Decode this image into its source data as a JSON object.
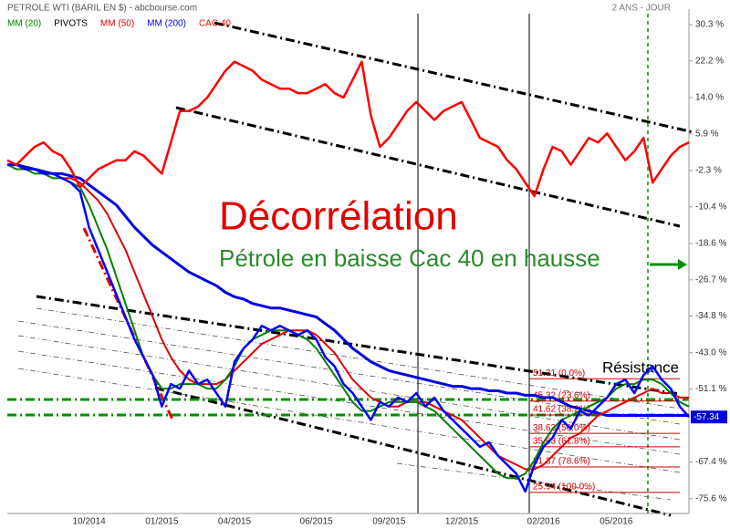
{
  "chart_data": {
    "type": "line",
    "title": "PETROLE WTI (BARIL EN $) - abcbourse.com",
    "subtitle": "2 ANS - JOUR",
    "categories": [
      null,
      null,
      null,
      null,
      null,
      null,
      null,
      null,
      null,
      "10/2014",
      null,
      null,
      null,
      null,
      null,
      null,
      null,
      "01/2015",
      null,
      null,
      null,
      null,
      null,
      null,
      null,
      "04/2015",
      null,
      null,
      null,
      null,
      null,
      null,
      null,
      null,
      "06/2015",
      null,
      null,
      null,
      null,
      null,
      null,
      null,
      "09/2015",
      null,
      null,
      null,
      null,
      null,
      null,
      null,
      "12/2015",
      null,
      null,
      null,
      null,
      null,
      null,
      null,
      null,
      "02/2016",
      null,
      null,
      null,
      null,
      null,
      null,
      null,
      "05/2016",
      null,
      null,
      null,
      null,
      null,
      null,
      null,
      null
    ],
    "series": [
      {
        "name": "MM (20)",
        "color": "#008000",
        "width": 2,
        "values": [
          -1,
          -2,
          -2,
          -3,
          -3,
          -4,
          -4,
          -5,
          -6,
          -10,
          -15,
          -20,
          -26,
          -32,
          -38,
          -44,
          -48,
          -51,
          -51,
          -50,
          -50,
          -50,
          -51,
          -51,
          -49,
          -46,
          -42,
          -40,
          -39,
          -38,
          -38,
          -38,
          -39,
          -40,
          -42,
          -45,
          -48,
          -51,
          -54,
          -56,
          -56,
          -55,
          -54,
          -54,
          -54,
          -54,
          -55,
          -56,
          -58,
          -60,
          -62,
          -64,
          -66,
          -68,
          -70,
          -71,
          -71,
          -70,
          -67,
          -63,
          -60,
          -58,
          -57,
          -56,
          -55,
          -54,
          -53,
          -51,
          -50,
          -50,
          -49,
          -49,
          -50,
          -52,
          -54,
          -55
        ]
      },
      {
        "name": "MM (50)",
        "color": "#e00000",
        "width": 2,
        "values": [
          -1,
          -1,
          -2,
          -2,
          -3,
          -3,
          -4,
          -4,
          -5,
          -7,
          -9,
          -12,
          -16,
          -20,
          -25,
          -30,
          -35,
          -40,
          -44,
          -47,
          -49,
          -50,
          -50,
          -50,
          -49,
          -47,
          -45,
          -43,
          -41,
          -40,
          -39,
          -38,
          -38,
          -38,
          -39,
          -41,
          -43,
          -46,
          -49,
          -51,
          -53,
          -54,
          -55,
          -55,
          -54,
          -54,
          -54,
          -55,
          -56,
          -57,
          -58,
          -60,
          -62,
          -64,
          -66,
          -67,
          -68,
          -69,
          -69,
          -68,
          -66,
          -64,
          -62,
          -61,
          -59,
          -57,
          -56,
          -55,
          -54,
          -53,
          -52,
          -51,
          -52,
          -52,
          -53,
          -53
        ]
      },
      {
        "name": "MM (200)",
        "color": "#0000e0",
        "width": 3,
        "values": [
          -1,
          -1,
          -1.5,
          -2,
          -2.5,
          -3,
          -3,
          -3.5,
          -4,
          -5.5,
          -7,
          -8.5,
          -10,
          -12.5,
          -15,
          -17,
          -19,
          -20.5,
          -22,
          -23.5,
          -25,
          -26,
          -27,
          -28,
          -29.5,
          -30.5,
          -31,
          -32,
          -32.5,
          -33,
          -33,
          -33.5,
          -34,
          -34.5,
          -35,
          -36.5,
          -38,
          -40,
          -42,
          -43.5,
          -45,
          -46,
          -47,
          -47.5,
          -48,
          -48.5,
          -49,
          -49.5,
          -50,
          -50.5,
          -50.5,
          -51,
          -51,
          -51.5,
          -51.5,
          -52,
          -52,
          -52.5,
          -52.5,
          -53,
          -53,
          -54,
          -55,
          -55.5,
          -56,
          -56.5,
          -57,
          -57,
          -57,
          -57,
          -57,
          -57,
          -57,
          -57,
          -57,
          -57
        ]
      },
      {
        "name": "CAC 40",
        "color": "#ff0000",
        "width": 2.5,
        "values": [
          0,
          -1,
          1,
          3,
          4,
          2,
          1,
          -2,
          -6,
          -4,
          -2,
          -1,
          0,
          0,
          2,
          1,
          -1,
          -3,
          4,
          11,
          11,
          12,
          14,
          17,
          20,
          22,
          21,
          20,
          18,
          17,
          16,
          16,
          15,
          15,
          16,
          17,
          15,
          14,
          18,
          22,
          10,
          3,
          5,
          8,
          11,
          13,
          11,
          9,
          11,
          12,
          13,
          9,
          5,
          4,
          3,
          0,
          -2,
          -5,
          -8,
          -2,
          3,
          2,
          -1,
          2,
          5,
          4,
          6,
          3,
          0,
          2,
          5,
          -5,
          -2,
          1,
          3,
          4
        ]
      },
      {
        "color": "#0000ff",
        "width": 2.5,
        "values": [
          -1,
          -1,
          -2,
          -2,
          -3,
          -3,
          -4,
          -5,
          -7,
          -15,
          -20,
          -25,
          -30,
          -35,
          -40,
          -44,
          -48,
          -55,
          -50,
          -51,
          -47,
          -50,
          -49,
          -52,
          -55,
          -45,
          -42,
          -40,
          -37,
          -38,
          -37,
          -38,
          -39,
          -38,
          -40,
          -44,
          -46,
          -50,
          -52,
          -55,
          -58,
          -54,
          -55,
          -53,
          -54,
          -52,
          -55,
          -53,
          -56,
          -58,
          -60,
          -62,
          -64,
          -63,
          -66,
          -68,
          -70,
          -74,
          -68,
          -64,
          -62,
          -58,
          -60,
          -56,
          -57,
          -55,
          -53,
          -50,
          -49,
          -52,
          -48,
          -46,
          -49,
          -51,
          -55,
          -57.34
        ]
      }
    ],
    "ylim": [
      -78.9,
      35.8
    ],
    "yticks": [
      {
        "value": 30.3,
        "label": "30.3 %"
      },
      {
        "value": 22.2,
        "label": "22.2 %"
      },
      {
        "value": 14.0,
        "label": "14.0 %"
      },
      {
        "value": 5.9,
        "label": "5.9 %"
      },
      {
        "value": -2.3,
        "label": "-2.3 %"
      },
      {
        "value": -10.4,
        "label": "-10.4 %"
      },
      {
        "value": -18.6,
        "label": "-18.6 %"
      },
      {
        "value": -26.7,
        "label": "-26.7 %"
      },
      {
        "value": -34.8,
        "label": "-34.8 %"
      },
      {
        "value": -43.0,
        "label": "-43.0 %"
      },
      {
        "value": -51.1,
        "label": "-51.1 %"
      },
      {
        "value": -67.4,
        "label": "-67.4 %"
      },
      {
        "value": -75.6,
        "label": "-75.6 %"
      }
    ],
    "last_value": -57.34,
    "pivots": {
      "name": "PIVOTS",
      "color": "#cc0000",
      "levels": [
        {
          "label": "51.31 (0.0%)",
          "value": -48.8
        },
        {
          "label": "45.32 (23.6%)",
          "value": -53.8
        },
        {
          "label": "41.62 (38.2%)",
          "value": -56.9
        },
        {
          "label": "38.63 (50.0%)",
          "value": -61.0
        },
        {
          "label": "35.63 (61.8%)",
          "value": -64.0
        },
        {
          "label": "31.37 (78.6%)",
          "value": -68.5
        },
        {
          "label": "25.94 (100.0%)",
          "value": -74.2
        }
      ]
    },
    "annotations": {
      "main": "Décorrélation",
      "sub": "Pétrole en baisse Cac 40 en hausse",
      "resistance": "Résistance"
    }
  }
}
